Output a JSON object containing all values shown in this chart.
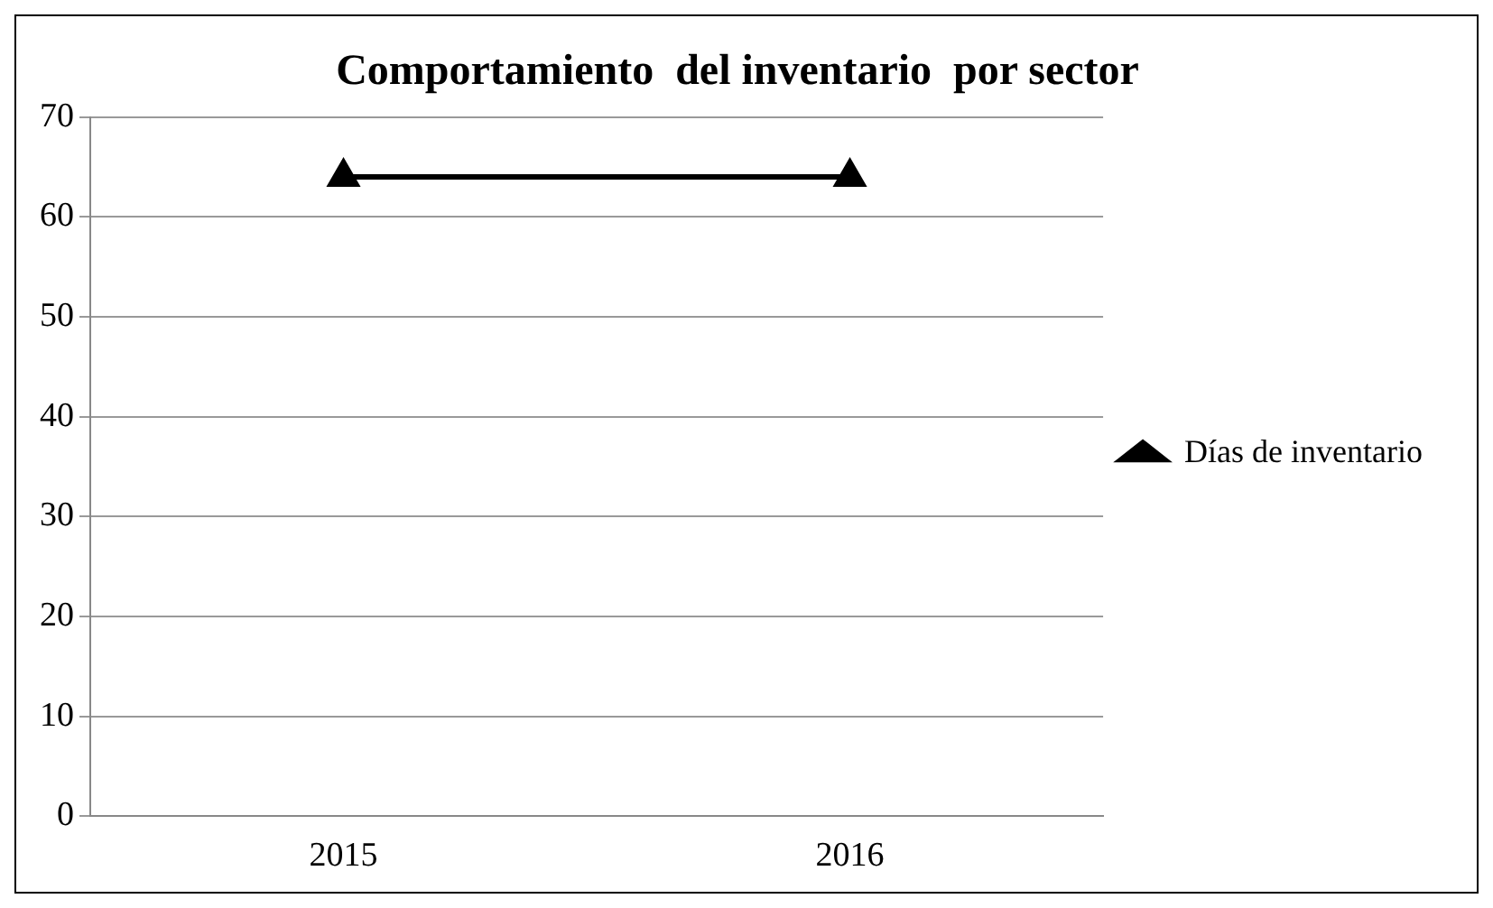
{
  "chart_data": {
    "type": "line",
    "title": "Comportamiento  del inventario  por sector",
    "categories": [
      "2015",
      "2016"
    ],
    "series": [
      {
        "name": "Días de inventario",
        "color": "#000000",
        "values": [
          64,
          64
        ]
      }
    ],
    "ylim": [
      0,
      70
    ],
    "yticks": [
      0,
      10,
      20,
      30,
      40,
      50,
      60,
      70
    ],
    "grid": "y",
    "legend": "right",
    "marker": "triangle",
    "line_style": "solid"
  }
}
